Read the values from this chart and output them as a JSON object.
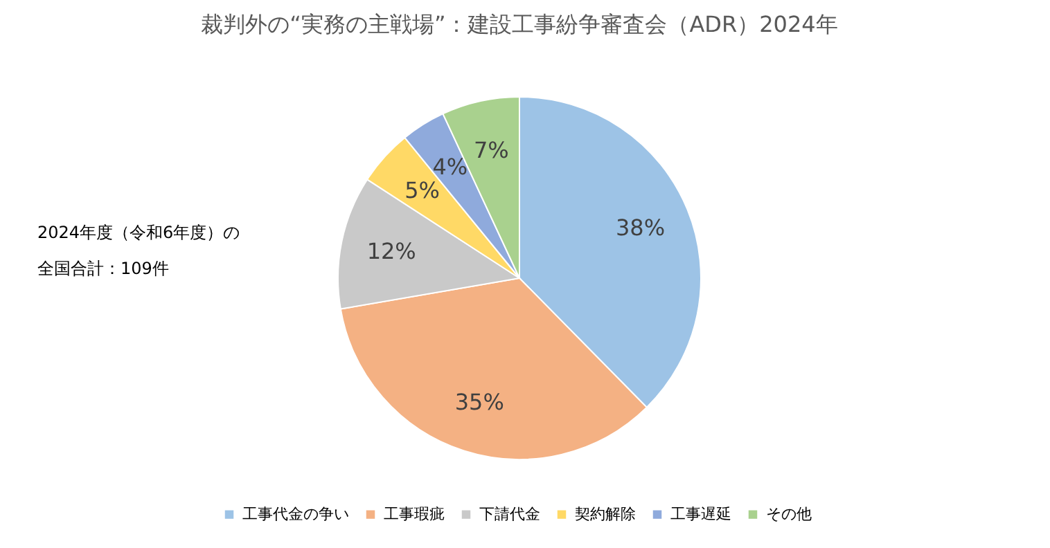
{
  "chart_data": {
    "type": "pie",
    "title": "裁判外の“実務の主戦場”：建設工事紛争審査会（ADR）2024年",
    "categories": [
      "工事代金の争い",
      "工事瑕疵",
      "下請代金",
      "契約解除",
      "工事遅延",
      "その他"
    ],
    "values": [
      38,
      35,
      12,
      5,
      4,
      7
    ],
    "value_labels": [
      "38%",
      "35%",
      "12%",
      "5%",
      "4%",
      "7%"
    ],
    "colors": [
      "#9dc3e6",
      "#f4b183",
      "#c9c9c9",
      "#ffd966",
      "#8faadc",
      "#a9d18e"
    ],
    "annotations": [
      "2024年度（令和6年度）の",
      "全国合計：109件"
    ],
    "legend": "bottom"
  }
}
